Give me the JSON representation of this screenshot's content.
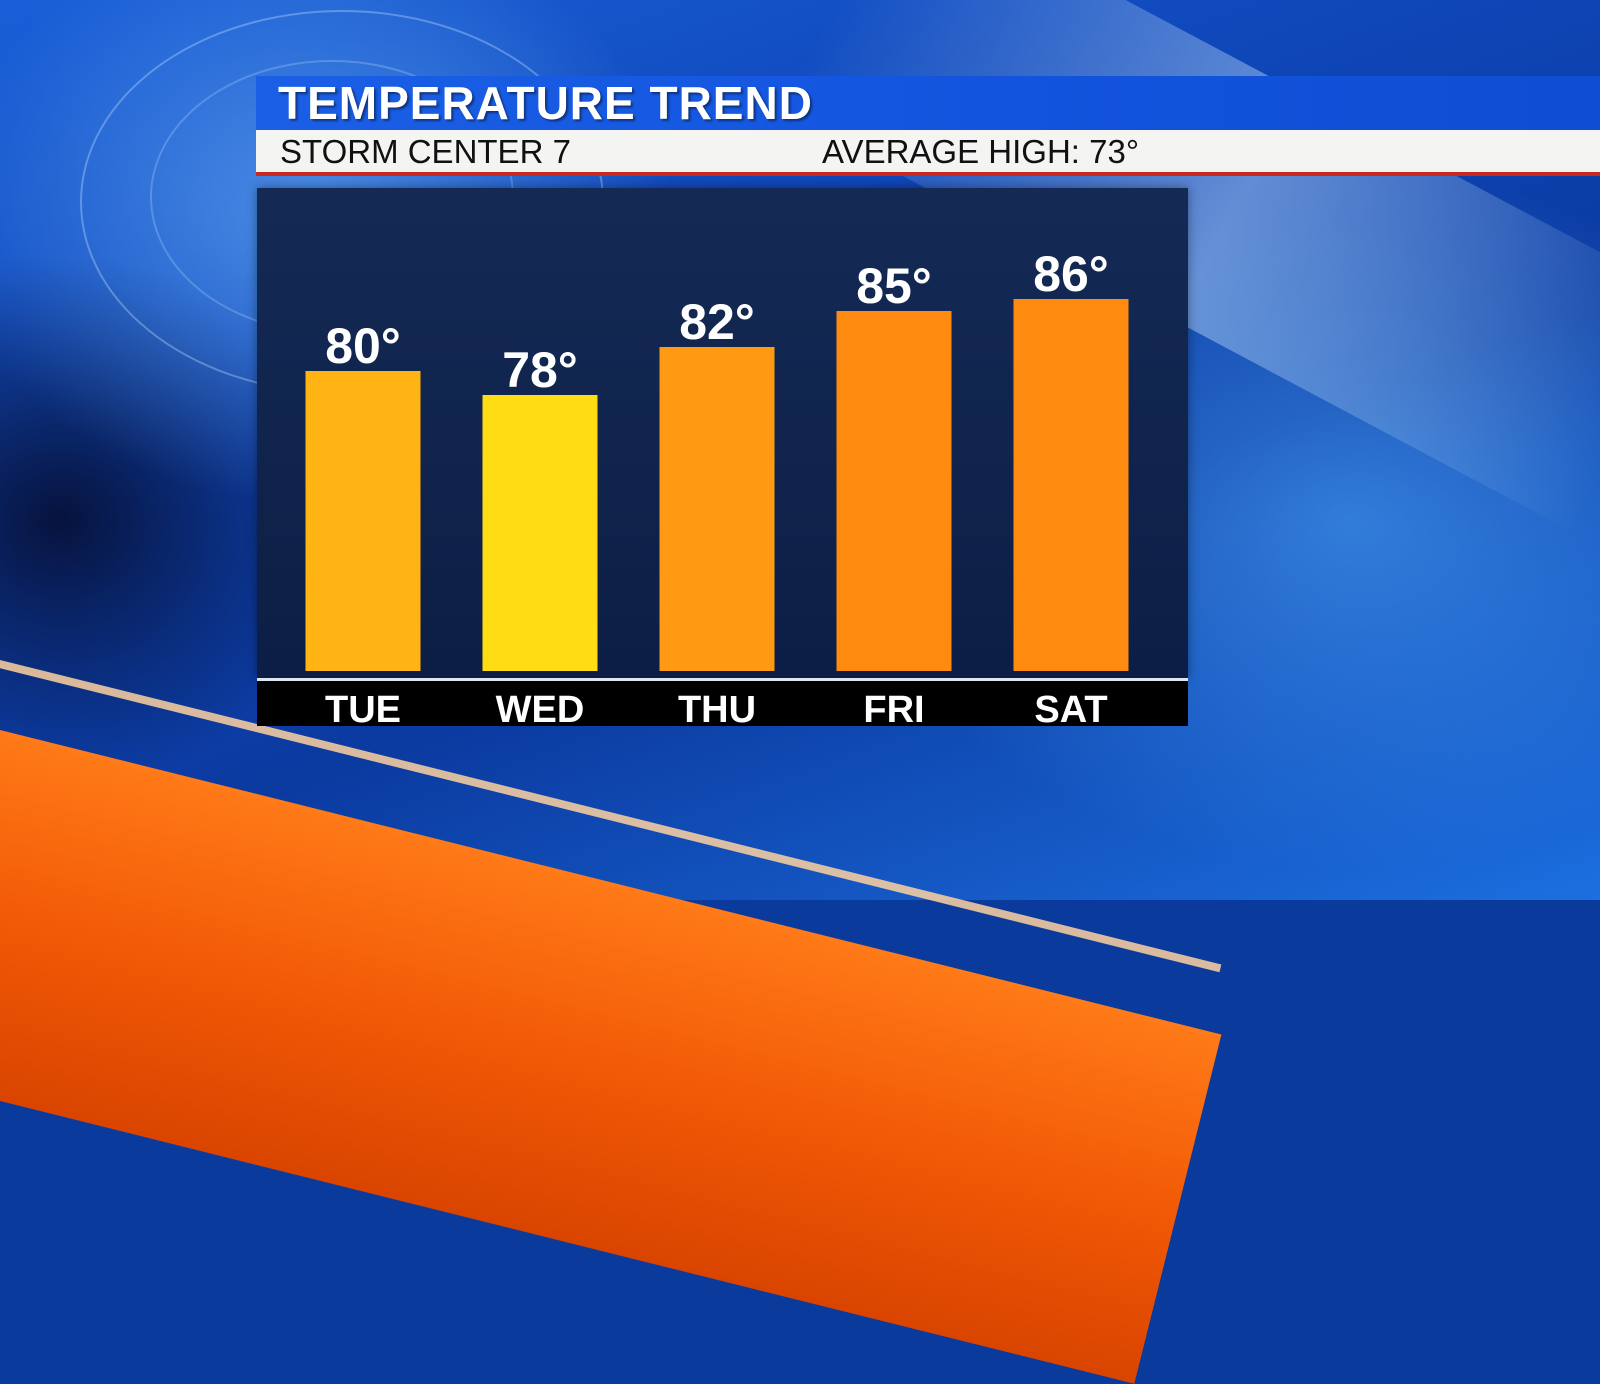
{
  "header": {
    "title": "TEMPERATURE TREND",
    "station": "STORM CENTER 7",
    "average_high": "AVERAGE HIGH: 73°"
  },
  "colors": {
    "header_blue": "#1b5fe6",
    "bar_yellow": "#ffdc14",
    "bar_amber": "#ffb414",
    "bar_orange": "#ff9a12",
    "bar_deep_orange": "#ff8a10"
  },
  "chart_data": {
    "type": "bar",
    "categories": [
      "TUE",
      "WED",
      "THU",
      "FRI",
      "SAT"
    ],
    "values": [
      80,
      78,
      82,
      85,
      86
    ],
    "value_labels": [
      "80°",
      "78°",
      "82°",
      "85°",
      "86°"
    ],
    "bar_colors": [
      "#ffb414",
      "#ffdc14",
      "#ff9a12",
      "#ff8a10",
      "#ff8a10"
    ],
    "title": "",
    "xlabel": "",
    "ylabel": "",
    "grid": false
  }
}
